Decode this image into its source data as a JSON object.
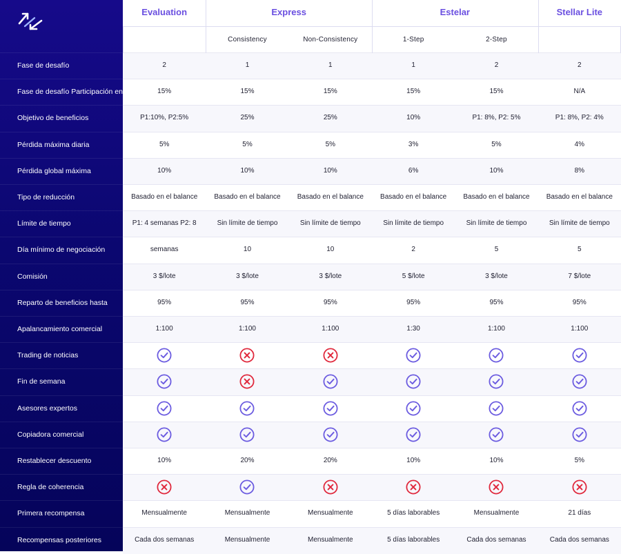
{
  "colors": {
    "accent": "#6a4fe0",
    "check": "#6b5be0",
    "cross": "#e0283c",
    "sidebar_top": "#160a8a",
    "sidebar_bottom": "#05045a"
  },
  "header": {
    "groups": [
      {
        "label": "Evaluation"
      },
      {
        "label": "Express"
      },
      {
        "label": "Estelar"
      },
      {
        "label": "Stellar Lite"
      }
    ],
    "subcolumns": [
      "",
      "Consistency",
      "Non-Consistency",
      "1-Step",
      "2-Step",
      ""
    ]
  },
  "rows": [
    {
      "label": "Fase de desafío",
      "cells": [
        "2",
        "1",
        "1",
        "1",
        "2",
        "2"
      ]
    },
    {
      "label": "Fase de desafío Participación en beneficios",
      "cells": [
        "15%",
        "15%",
        "15%",
        "15%",
        "15%",
        "N/A"
      ]
    },
    {
      "label": "Objetivo de beneficios",
      "cells": [
        "P1:10%, P2:5%",
        "25%",
        "25%",
        "10%",
        "P1: 8%, P2: 5%",
        "P1: 8%, P2: 4%"
      ]
    },
    {
      "label": "Pérdida máxima diaria",
      "cells": [
        "5%",
        "5%",
        "5%",
        "3%",
        "5%",
        "4%"
      ]
    },
    {
      "label": "Pérdida global máxima",
      "cells": [
        "10%",
        "10%",
        "10%",
        "6%",
        "10%",
        "8%"
      ]
    },
    {
      "label": "Tipo de reducción",
      "cells": [
        "Basado en el balance",
        "Basado en el balance",
        "Basado en el balance",
        "Basado en el balance",
        "Basado en el balance",
        "Basado en el balance"
      ]
    },
    {
      "label": "Límite de tiempo",
      "cells": [
        "P1: 4 semanas P2: 8",
        "Sin límite de tiempo",
        "Sin límite de tiempo",
        "Sin límite de tiempo",
        "Sin límite de tiempo",
        "Sin límite de tiempo"
      ]
    },
    {
      "label": "Día mínimo de negociación",
      "cells": [
        "semanas",
        "10",
        "10",
        "2",
        "5",
        "5"
      ]
    },
    {
      "label": "Comisión",
      "cells": [
        "3 $/lote",
        "3 $/lote",
        "3 $/lote",
        "5 $/lote",
        "3 $/lote",
        "7 $/lote"
      ]
    },
    {
      "label": "Reparto de beneficios hasta",
      "cells": [
        "95%",
        "95%",
        "95%",
        "95%",
        "95%",
        "95%"
      ]
    },
    {
      "label": "Apalancamiento comercial",
      "cells": [
        "1:100",
        "1:100",
        "1:100",
        "1:30",
        "1:100",
        "1:100"
      ]
    },
    {
      "label": "Trading de noticias",
      "icons": [
        "check",
        "cross",
        "cross",
        "check",
        "check",
        "check"
      ]
    },
    {
      "label": "Fin de semana",
      "icons": [
        "check",
        "cross",
        "check",
        "check",
        "check",
        "check"
      ]
    },
    {
      "label": "Asesores expertos",
      "icons": [
        "check",
        "check",
        "check",
        "check",
        "check",
        "check"
      ]
    },
    {
      "label": "Copiadora comercial",
      "icons": [
        "check",
        "check",
        "check",
        "check",
        "check",
        "check"
      ]
    },
    {
      "label": "Restablecer descuento",
      "cells": [
        "10%",
        "20%",
        "20%",
        "10%",
        "10%",
        "5%"
      ]
    },
    {
      "label": "Regla de coherencia",
      "icons": [
        "cross",
        "check",
        "cross",
        "cross",
        "cross",
        "cross"
      ]
    },
    {
      "label": "Primera recompensa",
      "cells": [
        "Mensualmente",
        "Mensualmente",
        "Mensualmente",
        "5 días laborables",
        "Mensualmente",
        "21 días"
      ]
    },
    {
      "label": "Recompensas posteriores",
      "cells": [
        "Cada dos semanas",
        "Mensualmente",
        "Mensualmente",
        "5 días laborables",
        "Cada dos semanas",
        "Cada dos semanas"
      ]
    }
  ],
  "icons": {
    "logo": "arrows-logo-icon",
    "check": "check-circle-icon",
    "cross": "cross-circle-icon"
  }
}
